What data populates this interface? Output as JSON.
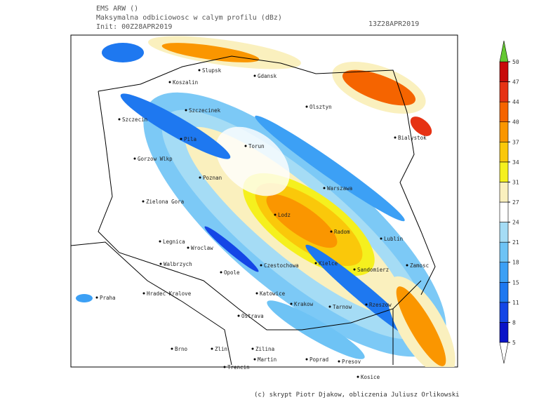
{
  "header": {
    "model": "EMS ARW ()",
    "field": "Maksymalna odbiciowosc w calym profilu (dBz)",
    "init": "Init: 00Z28APR2019",
    "valid": "13Z28APR2019"
  },
  "colorbar": {
    "levels": [
      5,
      8,
      11,
      15,
      18,
      21,
      24,
      27,
      31,
      34,
      37,
      40,
      44,
      47,
      50
    ],
    "colors": [
      "#0a14c8",
      "#1446e6",
      "#1e78f0",
      "#3ca0f5",
      "#6ec3f5",
      "#a5dcf5",
      "#ffffff",
      "#faf0be",
      "#f5f01e",
      "#fac80a",
      "#fa9600",
      "#f56400",
      "#e63214",
      "#c80a0a"
    ],
    "under_color": "#ffffff",
    "over_color": "#64c832"
  },
  "cities": [
    "Slupsk",
    "Gdansk",
    "Koszalin",
    "Szczecinek",
    "Szczecin",
    "Olsztyn",
    "Bialystok",
    "Pila",
    "Torun",
    "Gorzow Wlkp",
    "Poznan",
    "Warszawa",
    "Zielona Gora",
    "Lodz",
    "Radom",
    "Lublin",
    "Legnica",
    "Wroclaw",
    "Walbrzych",
    "Czestochowa",
    "Kielce",
    "Sandomierz",
    "Zamosc",
    "Opole",
    "Praha",
    "Hradec Kralove",
    "Katowice",
    "Krakow",
    "Tarnow",
    "Rzeszow",
    "Ostrava",
    "Brno",
    "Zlin",
    "Zilina",
    "Martin",
    "Poprad",
    "Presov",
    "Trencin",
    "Kosice"
  ],
  "footer": "(c) skrypt Piotr Djakow, obliczenia Juliusz Orlikowski"
}
